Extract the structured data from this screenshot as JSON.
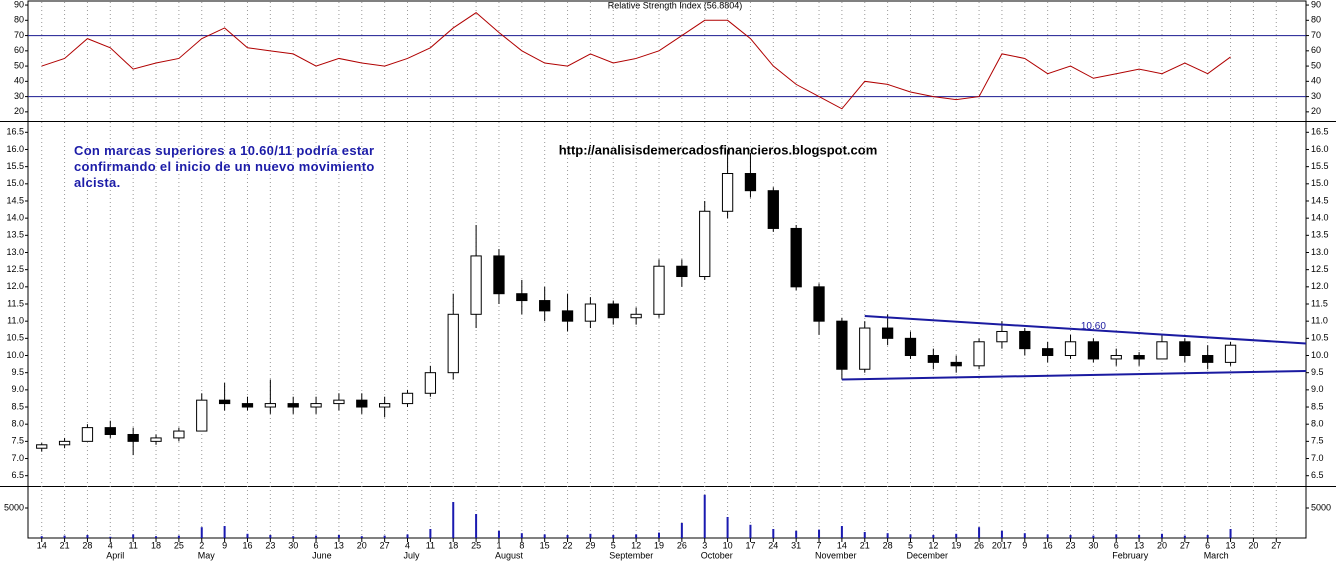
{
  "chart_data": [
    {
      "type": "line",
      "title": "Relative Strength Index (56.8804)",
      "color": "#b00000",
      "values": [
        50,
        55,
        68,
        62,
        48,
        52,
        55,
        68,
        75,
        62,
        60,
        58,
        50,
        55,
        52,
        50,
        55,
        62,
        75,
        85,
        72,
        60,
        52,
        50,
        58,
        52,
        55,
        60,
        70,
        80,
        80,
        68,
        50,
        38,
        30,
        22,
        40,
        38,
        33,
        30,
        28,
        30,
        58,
        55,
        45,
        50,
        42,
        45,
        48,
        45,
        52,
        45,
        56
      ],
      "ylim": [
        14,
        92
      ],
      "yticks": [
        20,
        30,
        40,
        50,
        60,
        70,
        80,
        90
      ],
      "levels": [
        30,
        70
      ],
      "level_color": "#1a1a90"
    },
    {
      "type": "candlestick",
      "annotation_url": "http://analisisdemercadosfinancieros.blogspot.com",
      "annotation_text": "Con marcas superiores a 10.60/11 podría estar confirmando el inicio de un nuevo movimiento alcista.",
      "level_label": {
        "text": "10.60",
        "x": 46,
        "y": 10.85
      },
      "trendlines": [
        {
          "x": [
            36,
            55.3
          ],
          "y": [
            11.15,
            10.35
          ]
        },
        {
          "x": [
            35,
            55.3
          ],
          "y": [
            9.3,
            9.55
          ]
        }
      ],
      "trend_color": "#1a1aa0",
      "open": [
        7.3,
        7.4,
        7.5,
        7.9,
        7.7,
        7.5,
        7.6,
        7.8,
        8.7,
        8.6,
        8.5,
        8.6,
        8.5,
        8.6,
        8.7,
        8.5,
        8.6,
        8.9,
        9.5,
        11.2,
        12.9,
        11.8,
        11.6,
        11.3,
        11.0,
        11.5,
        11.1,
        11.2,
        12.6,
        12.3,
        14.2,
        15.3,
        14.8,
        13.7,
        12.0,
        11.0,
        9.6,
        10.8,
        10.5,
        10.0,
        9.8,
        9.7,
        10.4,
        10.7,
        10.2,
        10.0,
        10.4,
        9.9,
        10.0,
        9.9,
        10.4,
        10.0,
        9.8
      ],
      "high": [
        7.45,
        7.6,
        8.0,
        8.1,
        7.9,
        7.7,
        7.9,
        8.9,
        9.2,
        8.8,
        9.3,
        8.8,
        8.8,
        8.9,
        8.9,
        8.8,
        9.0,
        9.7,
        11.8,
        13.8,
        13.1,
        12.2,
        12.0,
        11.8,
        11.7,
        11.6,
        11.4,
        12.8,
        12.8,
        14.5,
        16.0,
        15.9,
        14.9,
        13.8,
        12.1,
        11.1,
        11.0,
        11.2,
        10.7,
        10.2,
        10.0,
        10.5,
        11.0,
        10.8,
        10.4,
        10.6,
        10.5,
        10.2,
        10.1,
        10.6,
        10.5,
        10.3,
        10.4
      ],
      "low": [
        7.2,
        7.3,
        7.5,
        7.6,
        7.1,
        7.4,
        7.5,
        7.8,
        8.4,
        8.4,
        8.3,
        8.3,
        8.3,
        8.4,
        8.3,
        8.2,
        8.5,
        8.8,
        9.3,
        10.8,
        11.5,
        11.2,
        11.0,
        10.7,
        10.8,
        10.9,
        10.9,
        11.1,
        12.0,
        12.2,
        14.0,
        14.6,
        13.6,
        11.9,
        10.6,
        9.3,
        9.5,
        10.3,
        9.9,
        9.6,
        9.5,
        9.6,
        10.2,
        10.0,
        9.8,
        9.9,
        9.8,
        9.7,
        9.7,
        9.9,
        9.8,
        9.6,
        9.7
      ],
      "close": [
        7.4,
        7.5,
        7.9,
        7.7,
        7.5,
        7.6,
        7.8,
        8.7,
        8.6,
        8.5,
        8.6,
        8.5,
        8.6,
        8.7,
        8.5,
        8.6,
        8.9,
        9.5,
        11.2,
        12.9,
        11.8,
        11.6,
        11.3,
        11.0,
        11.5,
        11.1,
        11.2,
        12.6,
        12.3,
        14.2,
        15.3,
        14.8,
        13.7,
        12.0,
        11.0,
        9.6,
        10.8,
        10.5,
        10.0,
        9.8,
        9.7,
        10.4,
        10.7,
        10.2,
        10.0,
        10.4,
        9.9,
        10.0,
        9.9,
        10.4,
        10.0,
        9.8,
        10.3
      ],
      "ylim": [
        6.2,
        16.8
      ],
      "yticks": [
        {
          "value": 6.5,
          "label": "6.5"
        },
        {
          "value": 7,
          "label": "7.0"
        },
        {
          "value": 7.5,
          "label": "7.5"
        },
        {
          "value": 8,
          "label": "8.0"
        },
        {
          "value": 8.5,
          "label": "8.5"
        },
        {
          "value": 9,
          "label": "9.0"
        },
        {
          "value": 9.5,
          "label": "9.5"
        },
        {
          "value": 10,
          "label": "10.0"
        },
        {
          "value": 10.5,
          "label": "10.5"
        },
        {
          "value": 11,
          "label": "11.0"
        },
        {
          "value": 11.5,
          "label": "11.5"
        },
        {
          "value": 12,
          "label": "12.0"
        },
        {
          "value": 12.5,
          "label": "12.5"
        },
        {
          "value": 13,
          "label": "13.0"
        },
        {
          "value": 13.5,
          "label": "13.5"
        },
        {
          "value": 14,
          "label": "14.0"
        },
        {
          "value": 14.5,
          "label": "14.5"
        },
        {
          "value": 15,
          "label": "15.0"
        },
        {
          "value": 15.5,
          "label": "15.5"
        },
        {
          "value": 16,
          "label": "16.0"
        },
        {
          "value": 16.5,
          "label": "16.5"
        }
      ],
      "xlim": [
        -0.6,
        55.3
      ],
      "xticks": [
        {
          "value": 0,
          "label": "14"
        },
        {
          "value": 1,
          "label": "21"
        },
        {
          "value": 2,
          "label": "28"
        },
        {
          "value": 3,
          "label": "4"
        },
        {
          "value": 4,
          "label": "11"
        },
        {
          "value": 5,
          "label": "18"
        },
        {
          "value": 6,
          "label": "25"
        },
        {
          "value": 7,
          "label": "2"
        },
        {
          "value": 8,
          "label": "9"
        },
        {
          "value": 9,
          "label": "16"
        },
        {
          "value": 10,
          "label": "23"
        },
        {
          "value": 11,
          "label": "30"
        },
        {
          "value": 12,
          "label": "6"
        },
        {
          "value": 13,
          "label": "13"
        },
        {
          "value": 14,
          "label": "20"
        },
        {
          "value": 15,
          "label": "27"
        },
        {
          "value": 16,
          "label": "4"
        },
        {
          "value": 17,
          "label": "11"
        },
        {
          "value": 18,
          "label": "18"
        },
        {
          "value": 19,
          "label": "25"
        },
        {
          "value": 20,
          "label": "1"
        },
        {
          "value": 21,
          "label": "8"
        },
        {
          "value": 22,
          "label": "15"
        },
        {
          "value": 23,
          "label": "22"
        },
        {
          "value": 24,
          "label": "29"
        },
        {
          "value": 25,
          "label": "5"
        },
        {
          "value": 26,
          "label": "12"
        },
        {
          "value": 27,
          "label": "19"
        },
        {
          "value": 28,
          "label": "26"
        },
        {
          "value": 29,
          "label": "3"
        },
        {
          "value": 30,
          "label": "10"
        },
        {
          "value": 31,
          "label": "17"
        },
        {
          "value": 32,
          "label": "24"
        },
        {
          "value": 33,
          "label": "31"
        },
        {
          "value": 34,
          "label": "7"
        },
        {
          "value": 35,
          "label": "14"
        },
        {
          "value": 36,
          "label": "21"
        },
        {
          "value": 37,
          "label": "28"
        },
        {
          "value": 38,
          "label": "5"
        },
        {
          "value": 39,
          "label": "12"
        },
        {
          "value": 40,
          "label": "19"
        },
        {
          "value": 41,
          "label": "26"
        },
        {
          "value": 42,
          "label": "2017"
        },
        {
          "value": 43,
          "label": "9"
        },
        {
          "value": 44,
          "label": "16"
        },
        {
          "value": 45,
          "label": "23"
        },
        {
          "value": 46,
          "label": "30"
        },
        {
          "value": 47,
          "label": "6"
        },
        {
          "value": 48,
          "label": "13"
        },
        {
          "value": 49,
          "label": "20"
        },
        {
          "value": 50,
          "label": "27"
        },
        {
          "value": 51,
          "label": "6"
        },
        {
          "value": 52,
          "label": "13"
        },
        {
          "value": 53,
          "label": "20"
        },
        {
          "value": 54,
          "label": "27"
        }
      ],
      "month_labels": [
        {
          "value": 3,
          "label": "April"
        },
        {
          "value": 7,
          "label": "May"
        },
        {
          "value": 12,
          "label": "June"
        },
        {
          "value": 16,
          "label": "July"
        },
        {
          "value": 20,
          "label": "August"
        },
        {
          "value": 25,
          "label": "September"
        },
        {
          "value": 29,
          "label": "October"
        },
        {
          "value": 34,
          "label": "November"
        },
        {
          "value": 38,
          "label": "December"
        },
        {
          "value": 47,
          "label": "February"
        },
        {
          "value": 51,
          "label": "March"
        }
      ]
    },
    {
      "type": "bar",
      "color": "#1a1ab0",
      "values": [
        300,
        400,
        500,
        200,
        600,
        300,
        400,
        1800,
        2000,
        700,
        500,
        300,
        400,
        500,
        300,
        400,
        600,
        1500,
        6000,
        4000,
        1200,
        800,
        600,
        500,
        700,
        500,
        600,
        900,
        2500,
        7200,
        3500,
        2200,
        1500,
        1200,
        1400,
        2000,
        1000,
        800,
        600,
        500,
        700,
        1800,
        1200,
        800,
        600,
        500,
        400,
        600,
        500,
        700,
        400,
        500,
        1500
      ],
      "ylim": [
        0,
        8500
      ],
      "yticks": [
        5000
      ]
    }
  ]
}
